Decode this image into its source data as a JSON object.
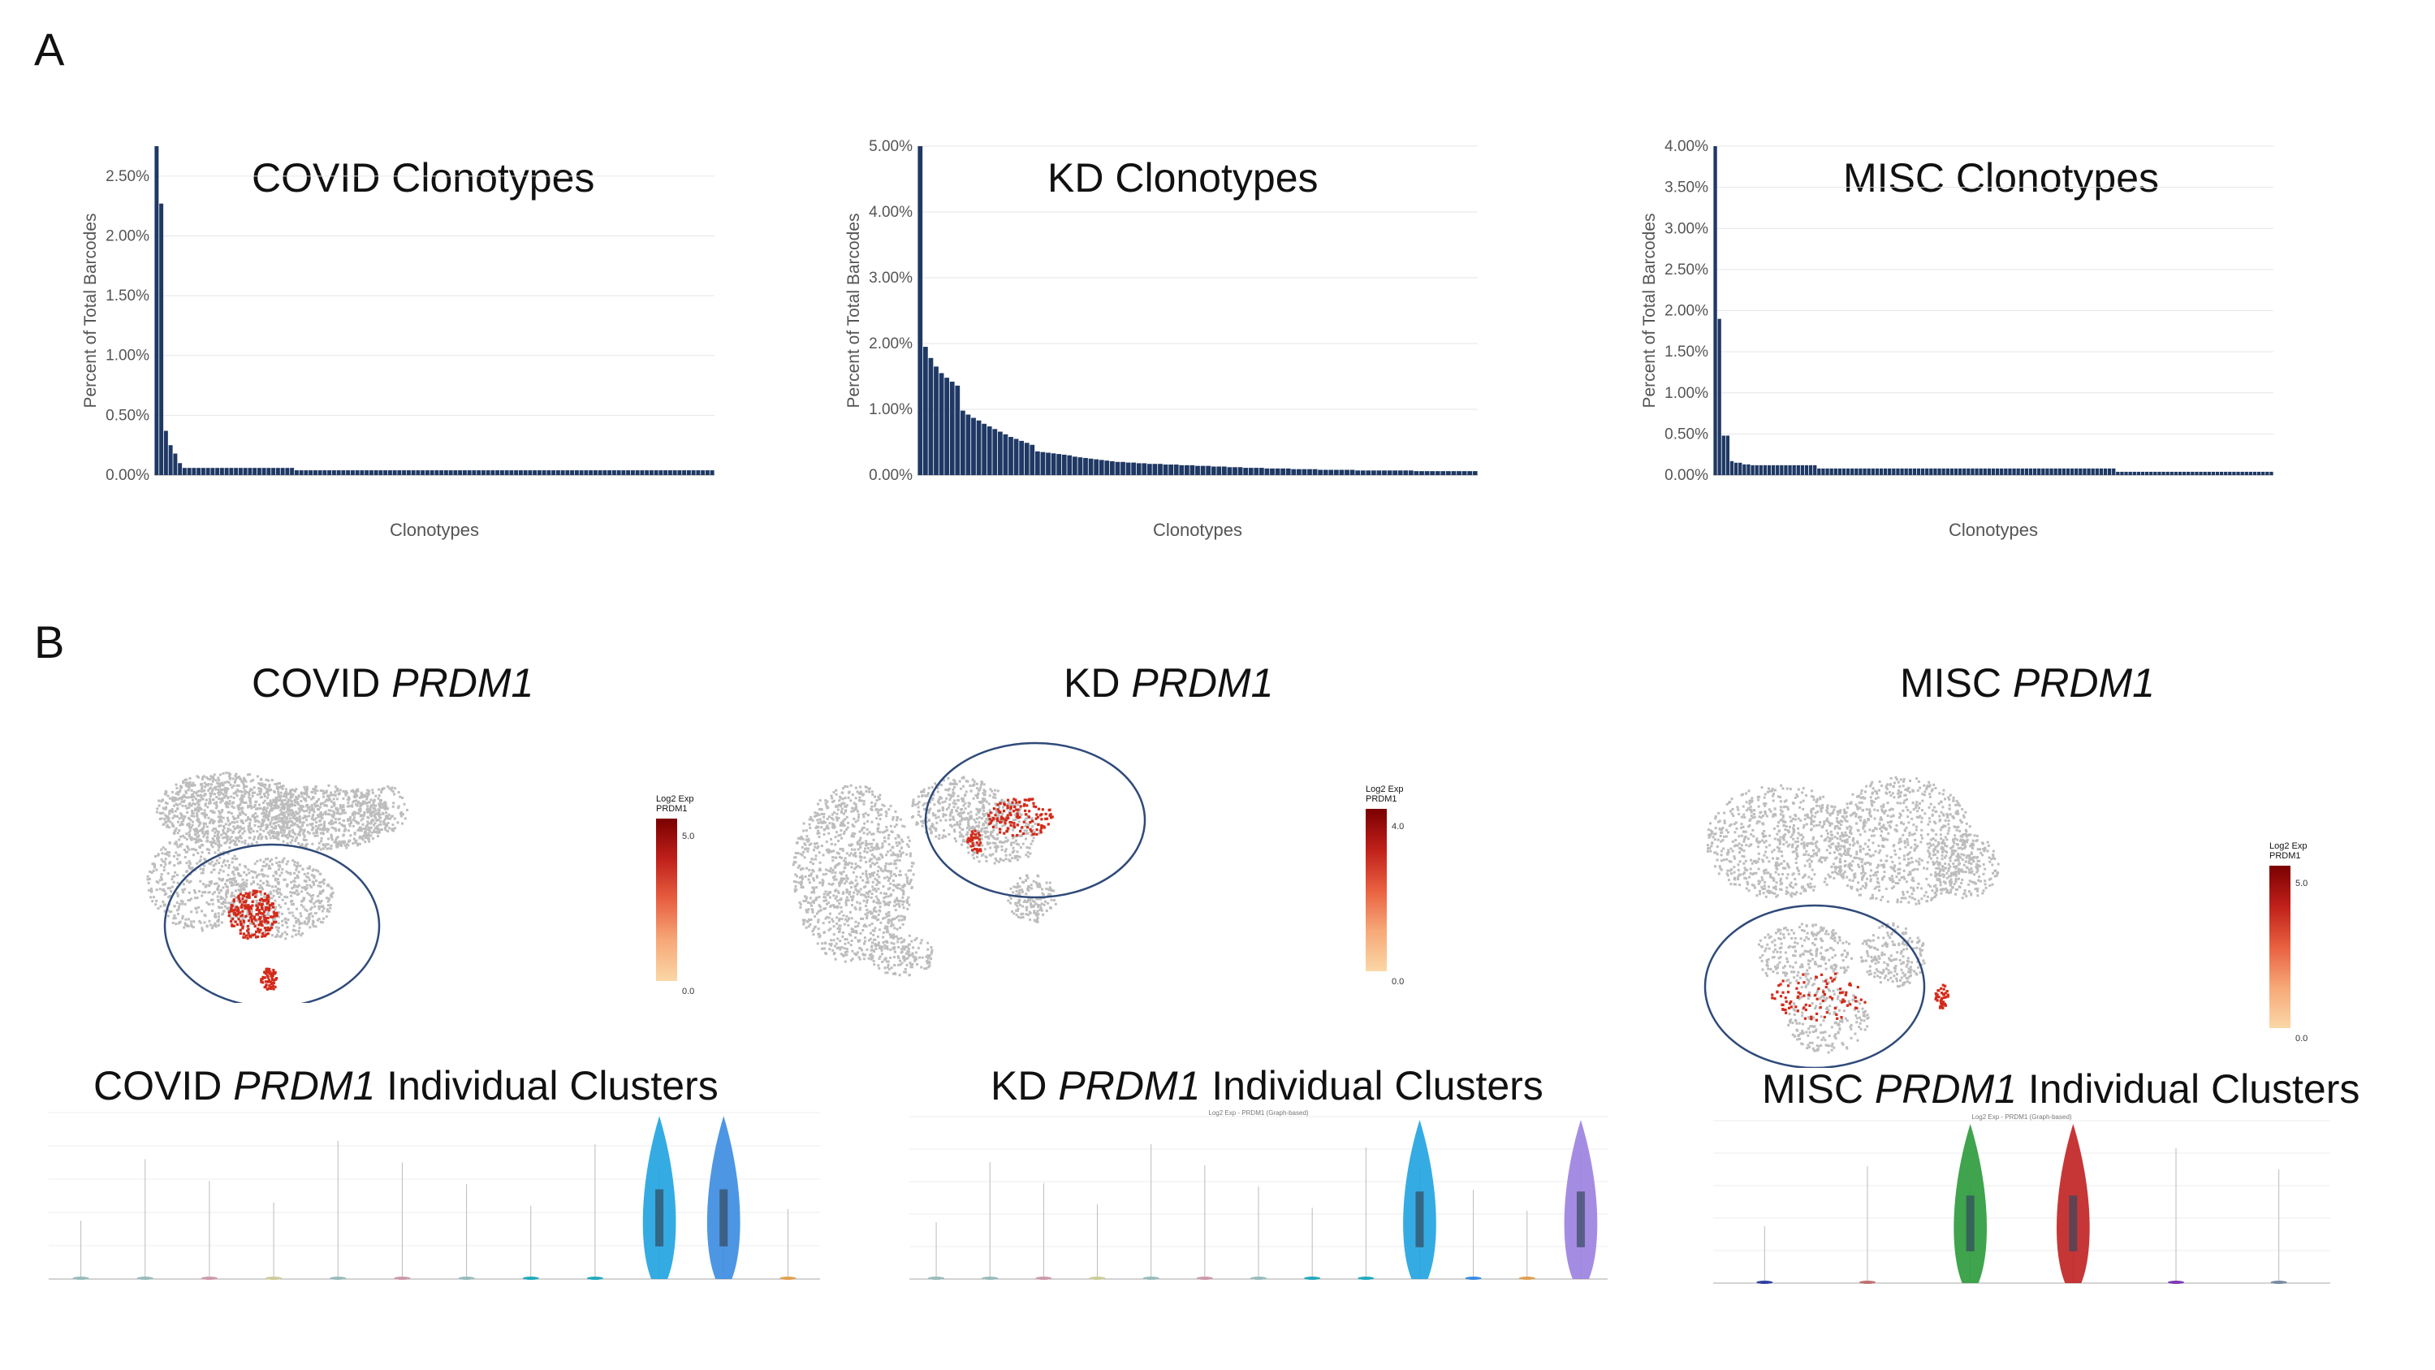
{
  "panels": {
    "a": "A",
    "b": "B"
  },
  "chart_data": [
    {
      "type": "bar",
      "title": "COVID Clonotypes",
      "xlabel": "Clonotypes",
      "ylabel": "Percent of Total Barcodes",
      "ylim": [
        0,
        2.75
      ],
      "yticks": [
        "0.00%",
        "0.50%",
        "1.00%",
        "1.50%",
        "2.00%",
        "2.50%"
      ],
      "values": [
        2.75,
        2.27,
        0.37,
        0.25,
        0.18,
        0.1,
        0.06,
        0.06,
        0.06,
        0.06,
        0.06,
        0.06,
        0.06,
        0.06,
        0.06,
        0.06,
        0.06,
        0.06,
        0.06,
        0.06,
        0.06,
        0.06,
        0.06,
        0.06,
        0.06,
        0.06,
        0.06,
        0.06,
        0.06,
        0.06,
        0.04,
        0.04,
        0.04,
        0.04,
        0.04,
        0.04,
        0.04,
        0.04,
        0.04,
        0.04,
        0.04,
        0.04,
        0.04,
        0.04,
        0.04,
        0.04,
        0.04,
        0.04,
        0.04,
        0.04,
        0.04,
        0.04,
        0.04,
        0.04,
        0.04,
        0.04,
        0.04,
        0.04,
        0.04,
        0.04,
        0.04,
        0.04,
        0.04,
        0.04,
        0.04,
        0.04,
        0.04,
        0.04,
        0.04,
        0.04,
        0.04,
        0.04,
        0.04,
        0.04,
        0.04,
        0.04,
        0.04,
        0.04,
        0.04,
        0.04,
        0.04,
        0.04,
        0.04,
        0.04,
        0.04,
        0.04,
        0.04,
        0.04,
        0.04,
        0.04,
        0.04,
        0.04,
        0.04,
        0.04,
        0.04,
        0.04,
        0.04,
        0.04,
        0.04,
        0.04,
        0.04,
        0.04,
        0.04,
        0.04,
        0.04,
        0.04,
        0.04,
        0.04,
        0.04,
        0.04,
        0.04,
        0.04,
        0.04,
        0.04,
        0.04,
        0.04,
        0.04,
        0.04,
        0.04,
        0.04
      ],
      "bar_color": "#1f3864",
      "grid": true
    },
    {
      "type": "bar",
      "title": "KD Clonotypes",
      "xlabel": "Clonotypes",
      "ylabel": "Percent of Total Barcodes",
      "ylim": [
        0,
        5.0
      ],
      "yticks": [
        "0.00%",
        "1.00%",
        "2.00%",
        "3.00%",
        "4.00%",
        "5.00%"
      ],
      "values": [
        5.0,
        1.95,
        1.78,
        1.65,
        1.55,
        1.48,
        1.42,
        1.36,
        0.98,
        0.92,
        0.87,
        0.83,
        0.78,
        0.74,
        0.7,
        0.66,
        0.62,
        0.58,
        0.55,
        0.52,
        0.49,
        0.46,
        0.36,
        0.35,
        0.34,
        0.33,
        0.32,
        0.31,
        0.3,
        0.28,
        0.27,
        0.26,
        0.25,
        0.24,
        0.23,
        0.22,
        0.21,
        0.2,
        0.2,
        0.19,
        0.19,
        0.18,
        0.18,
        0.17,
        0.17,
        0.17,
        0.16,
        0.16,
        0.16,
        0.15,
        0.15,
        0.15,
        0.14,
        0.14,
        0.14,
        0.13,
        0.13,
        0.13,
        0.12,
        0.12,
        0.12,
        0.11,
        0.11,
        0.11,
        0.11,
        0.1,
        0.1,
        0.1,
        0.1,
        0.1,
        0.09,
        0.09,
        0.09,
        0.09,
        0.09,
        0.08,
        0.08,
        0.08,
        0.08,
        0.08,
        0.08,
        0.08,
        0.07,
        0.07,
        0.07,
        0.07,
        0.07,
        0.07,
        0.07,
        0.07,
        0.07,
        0.07,
        0.07,
        0.06,
        0.06,
        0.06,
        0.06,
        0.06,
        0.06,
        0.06,
        0.06,
        0.06,
        0.06,
        0.06,
        0.06
      ],
      "bar_color": "#1f3864",
      "grid": true
    },
    {
      "type": "bar",
      "title": "MISC Clonotypes",
      "xlabel": "Clonotypes",
      "ylabel": "Percent of Total Barcodes",
      "ylim": [
        0,
        4.0
      ],
      "yticks": [
        "0.00%",
        "0.50%",
        "1.00%",
        "1.50%",
        "2.00%",
        "2.50%",
        "3.00%",
        "3.50%",
        "4.00%"
      ],
      "values": [
        4.1,
        1.9,
        0.48,
        0.48,
        0.17,
        0.15,
        0.15,
        0.13,
        0.13,
        0.12,
        0.12,
        0.12,
        0.12,
        0.12,
        0.12,
        0.12,
        0.12,
        0.12,
        0.12,
        0.12,
        0.12,
        0.12,
        0.12,
        0.12,
        0.12,
        0.08,
        0.08,
        0.08,
        0.08,
        0.08,
        0.08,
        0.08,
        0.08,
        0.08,
        0.08,
        0.08,
        0.08,
        0.08,
        0.08,
        0.08,
        0.08,
        0.08,
        0.08,
        0.08,
        0.08,
        0.08,
        0.08,
        0.08,
        0.08,
        0.08,
        0.08,
        0.08,
        0.08,
        0.08,
        0.08,
        0.08,
        0.08,
        0.08,
        0.08,
        0.08,
        0.08,
        0.08,
        0.08,
        0.08,
        0.08,
        0.08,
        0.08,
        0.08,
        0.08,
        0.08,
        0.08,
        0.08,
        0.08,
        0.08,
        0.08,
        0.08,
        0.08,
        0.08,
        0.08,
        0.08,
        0.08,
        0.08,
        0.08,
        0.08,
        0.08,
        0.08,
        0.08,
        0.08,
        0.08,
        0.08,
        0.08,
        0.08,
        0.08,
        0.08,
        0.08,
        0.08,
        0.08,
        0.04,
        0.04,
        0.04,
        0.04,
        0.04,
        0.04,
        0.04,
        0.04,
        0.04,
        0.04,
        0.04,
        0.04,
        0.04,
        0.04,
        0.04,
        0.04,
        0.04,
        0.04,
        0.04,
        0.04,
        0.04,
        0.04,
        0.04,
        0.04,
        0.04,
        0.04,
        0.04,
        0.04,
        0.04,
        0.04,
        0.04,
        0.04,
        0.04,
        0.04,
        0.04,
        0.04,
        0.04,
        0.04
      ],
      "bar_color": "#1f3864",
      "grid": true
    }
  ],
  "umaps": [
    {
      "title_prefix": "COVID ",
      "gene": "PRDM1",
      "legend_title_1": "Log2 Exp",
      "legend_title_2": "PRDM1",
      "max": "5.0",
      "min": "0.0"
    },
    {
      "title_prefix": "KD ",
      "gene": "PRDM1",
      "legend_title_1": "Log2 Exp",
      "legend_title_2": "PRDM1",
      "max": "4.0",
      "min": "0.0"
    },
    {
      "title_prefix": "MISC ",
      "gene": "PRDM1",
      "legend_title_1": "Log2 Exp",
      "legend_title_2": "PRDM1",
      "max": "5.0",
      "min": "0.0"
    }
  ],
  "violins": [
    {
      "title_prefix": "COVID ",
      "gene": "PRDM1",
      "title_suffix": " Individual Clusters",
      "subtitle": "",
      "colors": [
        "#9bb",
        "#9bb",
        "#c9a",
        "#cc9",
        "#9bb",
        "#c9a",
        "#9bb",
        "#2ab",
        "#2ab",
        "#1ea3e0",
        "#3a8be0",
        "#e0a050"
      ]
    },
    {
      "title_prefix": "KD ",
      "gene": "PRDM1",
      "title_suffix": " Individual Clusters",
      "subtitle": "Log2 Exp - PRDM1 (Graph-based)",
      "colors": [
        "#9bb",
        "#9bb",
        "#c9a",
        "#cc9",
        "#9bb",
        "#c9a",
        "#9bb",
        "#2ab",
        "#2ab",
        "#1ea3e0",
        "#3a8be0",
        "#e0a050",
        "#9b7fe0"
      ]
    },
    {
      "title_prefix": "MISC ",
      "gene": "PRDM1",
      "title_suffix": " Individual Clusters",
      "subtitle": "Log2 Exp - PRDM1 (Graph-based)",
      "colors": [
        "#3040a0",
        "#c07070",
        "#2a9a3a",
        "#c02020",
        "#7a3ab0",
        "#7a8aa0"
      ]
    }
  ]
}
